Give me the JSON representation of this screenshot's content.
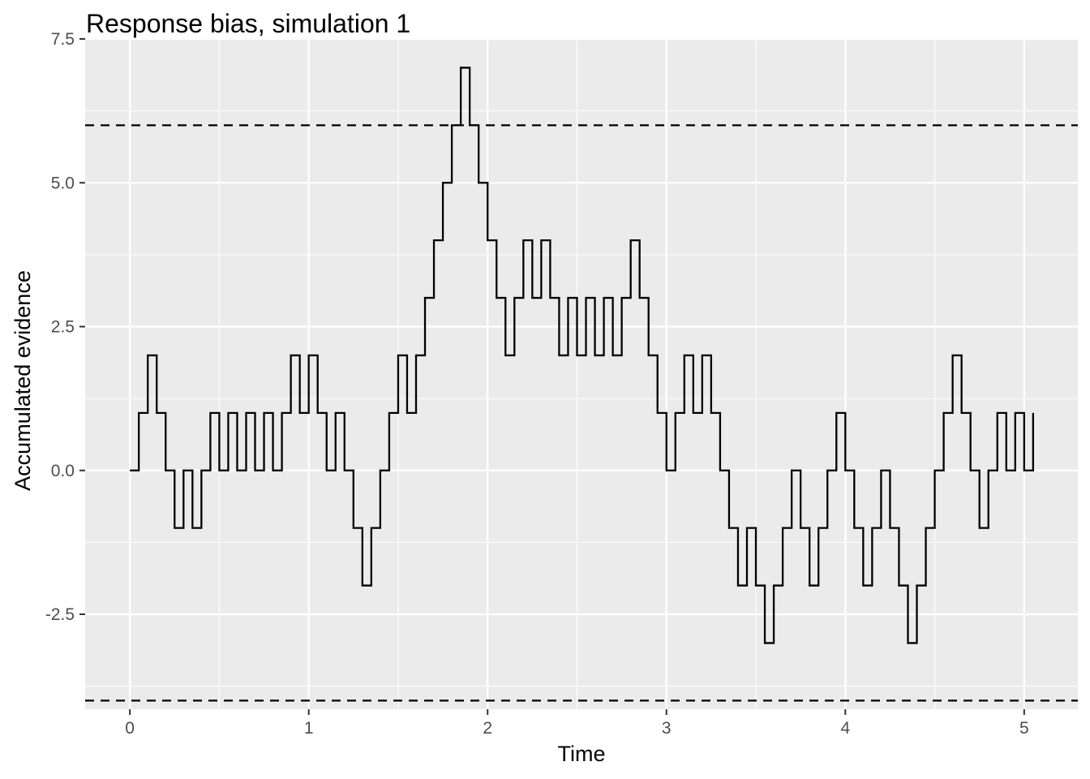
{
  "chart_data": {
    "type": "line",
    "step": true,
    "title": "Response bias, simulation 1",
    "xlabel": "Time",
    "ylabel": "Accumulated evidence",
    "xlim": [
      -0.25,
      5.3
    ],
    "ylim": [
      -4.15,
      7.5
    ],
    "x_major_ticks": [
      0,
      1,
      2,
      3,
      4,
      5
    ],
    "x_tick_labels": [
      "0",
      "1",
      "2",
      "3",
      "4",
      "5"
    ],
    "x_minor_grid": [
      0.5,
      1.5,
      2.5,
      3.5,
      4.5
    ],
    "y_major_ticks": [
      -2.5,
      0,
      2.5,
      5,
      7.5
    ],
    "y_tick_labels": [
      "-2.5",
      "0.0",
      "2.5",
      "5.0",
      "7.5"
    ],
    "y_minor_grid": [
      -3.75,
      -1.25,
      1.25,
      3.75,
      6.25
    ],
    "grid": true,
    "background": "#ebebeb",
    "gridline_color": "#ffffff",
    "line_color": "#000000",
    "thresholds": [
      6,
      -4
    ],
    "series": [
      {
        "start_x": 0,
        "dt": 0.05,
        "values": [
          0,
          1,
          2,
          1,
          0,
          -1,
          0,
          -1,
          0,
          1,
          0,
          1,
          0,
          1,
          0,
          1,
          0,
          1,
          2,
          1,
          2,
          1,
          0,
          1,
          0,
          -1,
          -2,
          -1,
          0,
          1,
          2,
          1,
          2,
          3,
          4,
          5,
          6,
          7,
          6,
          5,
          4,
          3,
          2,
          3,
          4,
          3,
          4,
          3,
          2,
          3,
          2,
          3,
          2,
          3,
          2,
          3,
          4,
          3,
          2,
          1,
          0,
          1,
          2,
          1,
          2,
          1,
          0,
          -1,
          -2,
          -1,
          -2,
          -3,
          -2,
          -1,
          0,
          -1,
          -2,
          -1,
          0,
          1,
          0,
          -1,
          -2,
          -1,
          0,
          -1,
          -2,
          -3,
          -2,
          -1,
          0,
          1,
          2,
          1,
          0,
          -1,
          0,
          1,
          0,
          1,
          0
        ]
      }
    ]
  }
}
